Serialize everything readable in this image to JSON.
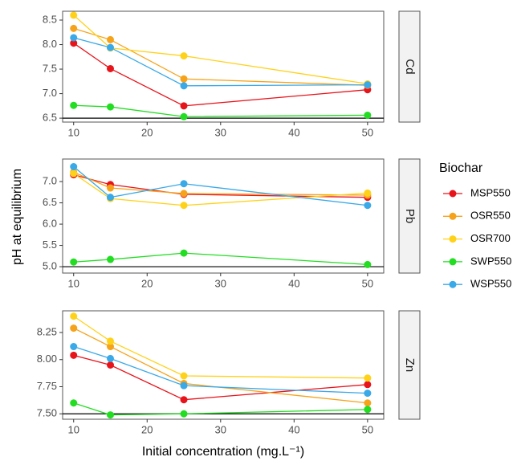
{
  "chart_data": [
    {
      "type": "line",
      "facet": "Cd",
      "x": [
        10,
        15,
        25,
        50
      ],
      "xlim": [
        8.5,
        52.2
      ],
      "xticks": [
        10,
        20,
        30,
        40,
        50
      ],
      "ylim": [
        6.42,
        8.68
      ],
      "yticks": [
        6.5,
        {
          "value": 7,
          "label": "7.0"
        },
        7.5,
        {
          "value": 8,
          "label": "8.0"
        },
        8.5
      ],
      "hline": 6.5,
      "series": [
        {
          "name": "MSP550",
          "color": "#e8141b",
          "values": [
            8.03,
            7.51,
            6.75,
            7.08
          ]
        },
        {
          "name": "OSR550",
          "color": "#f5a31a",
          "values": [
            8.33,
            8.1,
            7.3,
            7.17
          ]
        },
        {
          "name": "OSR700",
          "color": "#ffd21a",
          "values": [
            8.6,
            7.93,
            7.77,
            7.2
          ]
        },
        {
          "name": "SWP550",
          "color": "#22dd22",
          "values": [
            6.76,
            6.73,
            6.53,
            6.56
          ]
        },
        {
          "name": "WSP550",
          "color": "#3aa9e8",
          "values": [
            8.14,
            7.94,
            7.16,
            7.18
          ]
        }
      ]
    },
    {
      "type": "line",
      "facet": "Pb",
      "y_label": "pH at equilibrium",
      "legend_title": "Biochar",
      "x": [
        10,
        15,
        25,
        50
      ],
      "xlim": [
        8.5,
        52.2
      ],
      "xticks": [
        10,
        20,
        30,
        40,
        50
      ],
      "ylim": [
        4.85,
        7.53
      ],
      "yticks": [
        {
          "value": 5,
          "label": "5.0"
        },
        5.5,
        {
          "value": 6,
          "label": "6.0"
        },
        6.5,
        {
          "value": 7,
          "label": "7.0"
        }
      ],
      "hline": 5,
      "series": [
        {
          "name": "MSP550",
          "color": "#e8141b",
          "values": [
            7.16,
            6.93,
            6.7,
            6.63
          ]
        },
        {
          "name": "OSR550",
          "color": "#f5a31a",
          "values": [
            7.22,
            6.85,
            6.72,
            6.68
          ]
        },
        {
          "name": "OSR700",
          "color": "#ffd21a",
          "values": [
            7.19,
            6.6,
            6.44,
            6.73
          ]
        },
        {
          "name": "SWP550",
          "color": "#22dd22",
          "values": [
            5.11,
            5.17,
            5.32,
            5.05
          ]
        },
        {
          "name": "WSP550",
          "color": "#3aa9e8",
          "values": [
            7.35,
            6.63,
            6.95,
            6.44
          ]
        }
      ]
    },
    {
      "type": "line",
      "facet": "Zn",
      "x_label": "Initial concentration (mg.L⁻¹)",
      "x": [
        10,
        15,
        25,
        50
      ],
      "xlim": [
        8.5,
        52.2
      ],
      "xticks": [
        10,
        20,
        30,
        40,
        50
      ],
      "ylim": [
        7.45,
        8.45
      ],
      "yticks": [
        {
          "value": 7.5,
          "label": "7.50"
        },
        7.75,
        {
          "value": 8,
          "label": "8.00"
        },
        8.25
      ],
      "hline": 7.5,
      "series": [
        {
          "name": "MSP550",
          "color": "#e8141b",
          "values": [
            8.04,
            7.95,
            7.63,
            7.77
          ]
        },
        {
          "name": "OSR550",
          "color": "#f5a31a",
          "values": [
            8.29,
            8.12,
            7.78,
            7.6
          ]
        },
        {
          "name": "OSR700",
          "color": "#ffd21a",
          "values": [
            8.4,
            8.17,
            7.85,
            7.83
          ]
        },
        {
          "name": "SWP550",
          "color": "#22dd22",
          "values": [
            7.6,
            7.49,
            7.5,
            7.54
          ]
        },
        {
          "name": "WSP550",
          "color": "#3aa9e8",
          "values": [
            8.12,
            8.01,
            7.76,
            7.69
          ]
        }
      ]
    }
  ]
}
